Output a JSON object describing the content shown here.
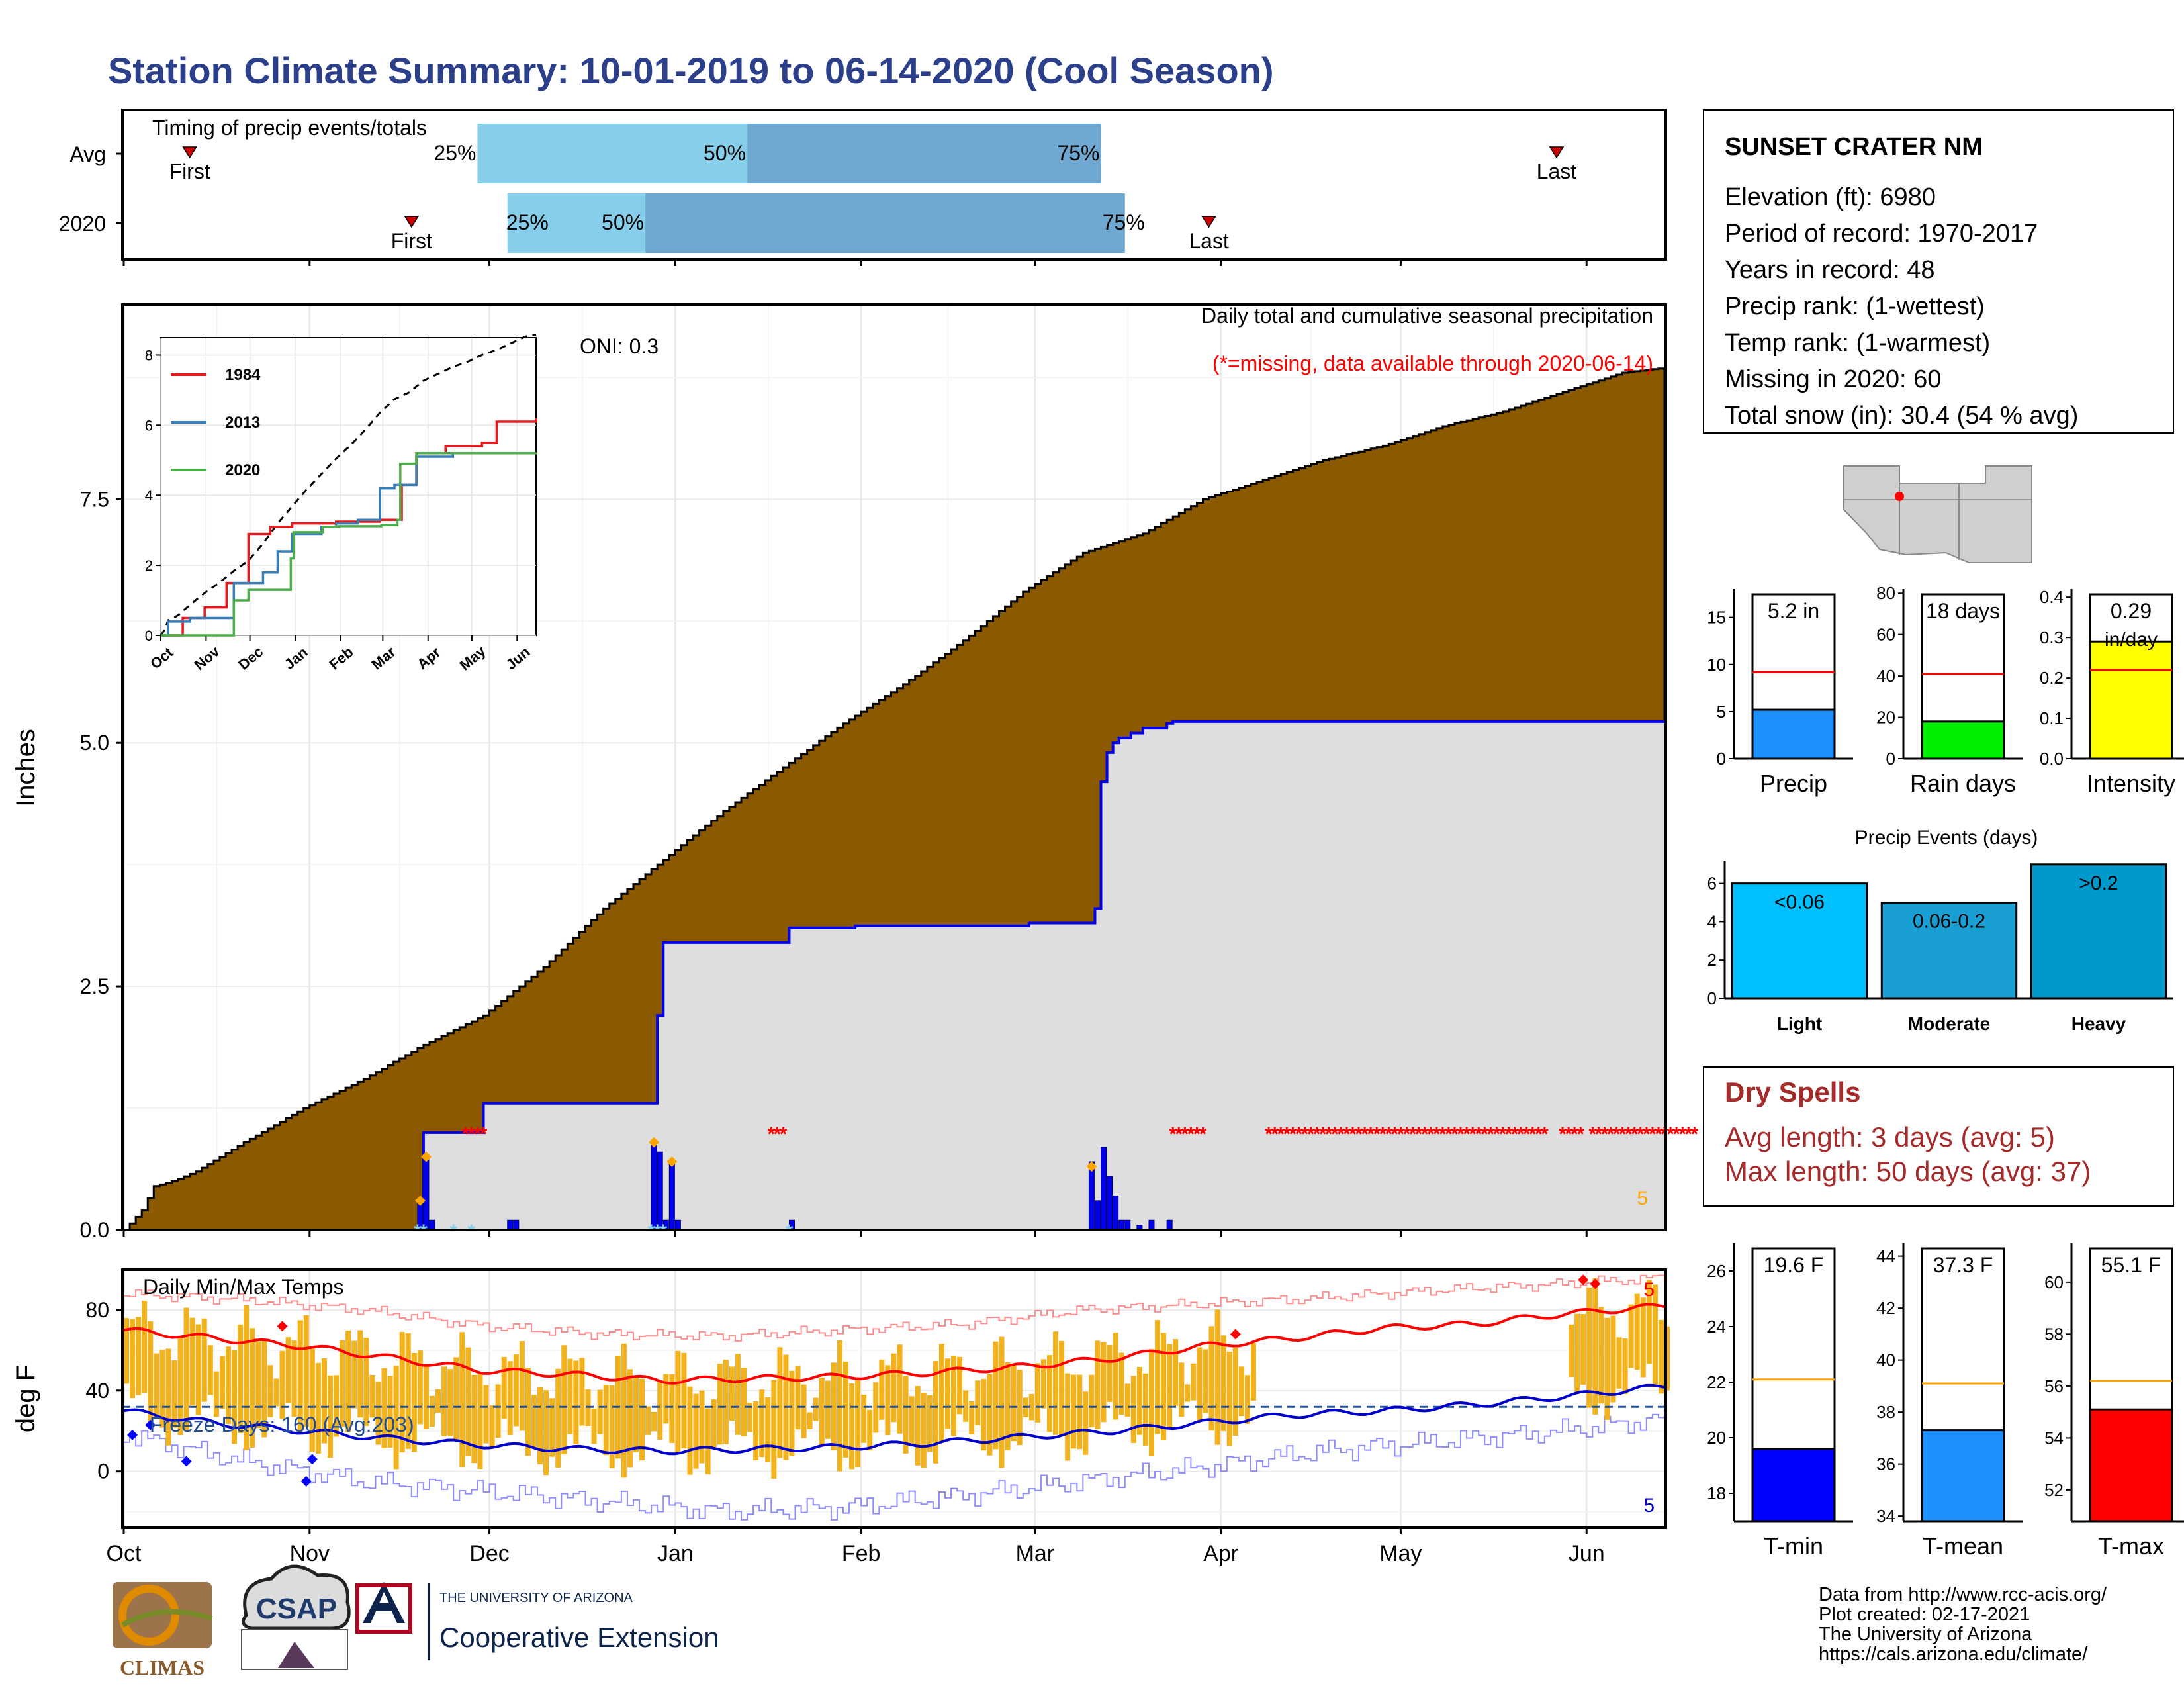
{
  "title": "Station Climate Summary: 10-01-2019 to 06-14-2020 (Cool Season)",
  "timing": {
    "label": "Timing of precip events/totals",
    "rows": [
      {
        "name": "Avg",
        "first": "10-12",
        "p25": "11-29",
        "p50": "01-13",
        "p75": "03-12",
        "last": "05-27",
        "first_label": "First",
        "last_label": "Last",
        "p25_label": "25%",
        "p50_label": "50%",
        "p75_label": "75%"
      },
      {
        "name": "2020",
        "first": "11-18",
        "p25": "12-04",
        "p50": "12-27",
        "p75": "03-16",
        "last": "03-30",
        "first_label": "First",
        "last_label": "Last",
        "p25_label": "25%",
        "p50_label": "50%",
        "p75_label": "75%"
      }
    ],
    "colors": {
      "light": "#87ceeb",
      "dark": "#6fa8d0",
      "marker": "#cc0000"
    }
  },
  "station": {
    "name": "SUNSET CRATER NM",
    "lines": [
      "Elevation (ft): 6980",
      "Period of record: 1970-2017",
      "Years in record: 48",
      "Precip rank:  (1-wettest)",
      "Temp rank:  (1-warmest)",
      "Missing in 2020: 60",
      "Total snow (in): 30.4 (54 % avg)"
    ]
  },
  "map": {
    "description_hidden": true
  },
  "chart_data": [
    {
      "type": "area",
      "id": "precip",
      "title": "Daily total and cumulative seasonal precipitation",
      "subtitle": "(*=missing, data available through 2020-06-14)",
      "oni_label": "ONI: 0.3",
      "ylabel": "Inches",
      "ylim": [
        0,
        9.5
      ],
      "yticks": [
        0.0,
        2.5,
        5.0,
        7.5
      ],
      "ytick_labels": [
        "0.0",
        "2.5",
        "5.0",
        "7.5"
      ],
      "x_months": [
        "Oct",
        "Nov",
        "Dec",
        "Jan",
        "Feb",
        "Mar",
        "Apr",
        "May",
        "Jun"
      ],
      "avg_cumulative": {
        "day": [
          0,
          3,
          5,
          8,
          12,
          20,
          30,
          40,
          50,
          60,
          70,
          80,
          90,
          100,
          110,
          120,
          130,
          140,
          150,
          160,
          170,
          180,
          190,
          200,
          210,
          220,
          230,
          240,
          250,
          257
        ],
        "value": [
          0.0,
          0.2,
          0.45,
          0.5,
          0.6,
          0.9,
          1.25,
          1.55,
          1.9,
          2.2,
          2.7,
          3.3,
          3.8,
          4.3,
          4.75,
          5.2,
          5.6,
          6.05,
          6.55,
          6.95,
          7.15,
          7.5,
          7.7,
          7.9,
          8.05,
          8.25,
          8.4,
          8.6,
          8.8,
          8.85
        ]
      },
      "observed_cumulative": {
        "day": [
          0,
          49,
          50,
          59,
          60,
          88,
          89,
          90,
          91,
          110,
          111,
          122,
          151,
          161,
          162,
          163,
          164,
          165,
          166,
          168,
          170,
          174,
          175,
          257
        ],
        "value": [
          0.0,
          0.0,
          1.0,
          1.0,
          1.3,
          1.3,
          2.2,
          2.95,
          2.95,
          2.95,
          3.1,
          3.12,
          3.15,
          3.15,
          3.3,
          4.6,
          4.9,
          5.0,
          5.05,
          5.1,
          5.15,
          5.2,
          5.22,
          5.22
        ]
      },
      "daily_bars": {
        "day": [
          49,
          50,
          51,
          64,
          65,
          88,
          89,
          90,
          91,
          92,
          111,
          161,
          162,
          163,
          164,
          165,
          166,
          167,
          169,
          171,
          174
        ],
        "value": [
          0.3,
          0.75,
          0.1,
          0.1,
          0.1,
          0.9,
          0.8,
          0.1,
          0.7,
          0.1,
          0.1,
          0.7,
          0.3,
          0.85,
          0.55,
          0.35,
          0.1,
          0.1,
          0.05,
          0.1,
          0.1
        ]
      },
      "snow_marks": [
        49,
        50,
        55,
        58,
        88,
        89,
        90,
        111
      ],
      "diamond_marks": [
        {
          "day": 49,
          "value": 0.3
        },
        {
          "day": 50,
          "value": 0.75
        },
        {
          "day": 88,
          "value": 0.9
        },
        {
          "day": 91,
          "value": 0.7
        },
        {
          "day": 161,
          "value": 0.65
        }
      ],
      "missing_ranges": [
        [
          57,
          60
        ],
        [
          108,
          110
        ],
        [
          175,
          180
        ],
        [
          191,
          237
        ],
        [
          240,
          243
        ],
        [
          245,
          262
        ]
      ],
      "corner_label": "5",
      "colors": {
        "avg_fill": "#8b5a00",
        "obs_fill": "#dedede",
        "obs_line": "#0000ee",
        "bars": "#0000ee",
        "missing": "#ff0000",
        "diamond": "#ffa500",
        "snow": "#87ceeb"
      }
    },
    {
      "type": "line",
      "id": "inset",
      "series": [
        {
          "name": "1984",
          "color": "#e41a1c",
          "x": [
            0,
            15,
            30,
            45,
            60,
            75,
            90,
            105,
            120,
            150,
            165,
            175,
            195,
            220,
            230,
            257
          ],
          "y": [
            0,
            0.5,
            0.8,
            1.5,
            2.9,
            3.1,
            3.2,
            3.2,
            3.25,
            3.3,
            4.3,
            5.2,
            5.4,
            5.5,
            6.1,
            6.2
          ]
        },
        {
          "name": "2013",
          "color": "#377eb8",
          "x": [
            0,
            5,
            20,
            40,
            50,
            70,
            80,
            90,
            110,
            120,
            135,
            150,
            160,
            175,
            200,
            257
          ],
          "y": [
            0,
            0.4,
            0.5,
            0.5,
            1.5,
            1.8,
            2.4,
            2.9,
            3.1,
            3.2,
            3.3,
            4.2,
            4.3,
            5.1,
            5.2,
            5.2
          ]
        },
        {
          "name": "2020",
          "color": "#4daf4a",
          "x": [
            0,
            49,
            50,
            60,
            89,
            91,
            111,
            122,
            151,
            162,
            164,
            175,
            257
          ],
          "y": [
            0,
            0,
            1.0,
            1.3,
            2.2,
            2.95,
            3.1,
            3.12,
            3.15,
            3.3,
            4.9,
            5.2,
            5.22
          ]
        }
      ],
      "avg_line": {
        "color": "#000000",
        "style": "dashed"
      },
      "ylim": [
        0,
        8.5
      ],
      "yticks": [
        0,
        2,
        4,
        6,
        8
      ],
      "ytick_labels": [
        "0",
        "2",
        "4",
        "6",
        "8"
      ],
      "x_months": [
        "Oct",
        "Nov",
        "Dec",
        "Jan",
        "Feb",
        "Mar",
        "Apr",
        "May",
        "Jun"
      ]
    },
    {
      "type": "bar",
      "id": "summary_precip",
      "label": "Precip",
      "value": 5.2,
      "value_label": "5.2 in",
      "avg": 9.2,
      "ylim": [
        0,
        18
      ],
      "yticks": [
        0,
        5,
        10,
        15
      ],
      "color": "#1e90ff"
    },
    {
      "type": "bar",
      "id": "summary_raindays",
      "label": "Rain days",
      "value": 18,
      "value_label": "18 days",
      "avg": 41,
      "ylim": [
        0,
        82
      ],
      "yticks": [
        0,
        20,
        40,
        60,
        80
      ],
      "color": "#00ee00"
    },
    {
      "type": "bar",
      "id": "summary_intensity",
      "label": "Intensity",
      "value": 0.29,
      "value_label": "0.29",
      "value_unit": "in/day",
      "avg": 0.22,
      "ylim": [
        0,
        0.42
      ],
      "yticks": [
        0.0,
        0.1,
        0.2,
        0.3,
        0.4
      ],
      "ytick_labels": [
        "0.0",
        "0.1",
        "0.2",
        "0.3",
        "0.4"
      ],
      "color": "#ffff00"
    },
    {
      "type": "bar",
      "id": "events",
      "title": "Precip Events (days)",
      "categories": [
        "Light",
        "Moderate",
        "Heavy"
      ],
      "bar_labels": [
        "<0.06",
        "0.06-0.2",
        ">0.2"
      ],
      "values": [
        6,
        5,
        7
      ],
      "ylim": [
        0,
        7.2
      ],
      "yticks": [
        0,
        2,
        4,
        6
      ],
      "colors": [
        "#00bfff",
        "#1a9fd4",
        "#0099cc"
      ]
    },
    {
      "type": "line",
      "id": "temps",
      "title": "Daily Min/Max Temps",
      "ylabel": "deg F",
      "ylim": [
        -28,
        100
      ],
      "yticks": [
        0,
        40,
        80
      ],
      "freeze_label": "Freeze Days: 160 (Avg:203)",
      "freeze_line": 32,
      "x_months": [
        "Oct",
        "Nov",
        "Dec",
        "Jan",
        "Feb",
        "Mar",
        "Apr",
        "May",
        "Jun"
      ],
      "avg_max": {
        "day": [
          0,
          15,
          30,
          45,
          60,
          75,
          90,
          105,
          120,
          135,
          150,
          165,
          180,
          195,
          210,
          225,
          240,
          257
        ],
        "value": [
          70,
          66,
          62,
          56,
          50,
          48,
          45,
          46,
          47,
          49,
          52,
          56,
          62,
          66,
          71,
          73,
          78,
          82
        ]
      },
      "avg_min": {
        "day": [
          0,
          15,
          30,
          45,
          60,
          75,
          90,
          105,
          120,
          135,
          150,
          165,
          180,
          195,
          210,
          225,
          240,
          257
        ],
        "value": [
          30,
          24,
          20,
          16,
          13,
          11,
          10,
          11,
          12,
          14,
          17,
          20,
          24,
          28,
          30,
          33,
          37,
          42
        ]
      },
      "record_max": {
        "day": [
          0,
          20,
          40,
          60,
          80,
          100,
          120,
          140,
          160,
          180,
          200,
          220,
          240,
          257
        ],
        "value": [
          88,
          85,
          80,
          72,
          68,
          67,
          70,
          73,
          80,
          83,
          86,
          90,
          93,
          96
        ]
      },
      "record_min": {
        "day": [
          0,
          20,
          40,
          60,
          80,
          100,
          120,
          140,
          160,
          180,
          200,
          220,
          240,
          257
        ],
        "value": [
          18,
          5,
          -5,
          -10,
          -15,
          -20,
          -18,
          -12,
          -5,
          2,
          10,
          15,
          20,
          26
        ]
      },
      "missing_gap_days": [
        189,
        240
      ],
      "high_markers": [
        {
          "day": 26,
          "value": 72
        },
        {
          "day": 185,
          "value": 68
        },
        {
          "day": 243,
          "value": 95
        },
        {
          "day": 245,
          "value": 93
        }
      ],
      "low_markers": [
        {
          "day": 1,
          "value": 18
        },
        {
          "day": 4,
          "value": 23
        },
        {
          "day": 10,
          "value": 5
        },
        {
          "day": 30,
          "value": -5
        },
        {
          "day": 31,
          "value": 6
        }
      ],
      "corner_label_top": "5",
      "corner_label_bottom": "5",
      "colors": {
        "bars": "#f2b21e",
        "max": "#ff0000",
        "min": "#0000cc",
        "record_max": "#ff8c8c",
        "record_min": "#8c8cff",
        "freeze": "#1f4e9a"
      }
    },
    {
      "type": "bar",
      "id": "tmin",
      "label": "T-min",
      "value": 19.6,
      "value_label": "19.6 F",
      "avg": 22.1,
      "ylim": [
        17,
        27
      ],
      "yticks": [
        18,
        20,
        22,
        24,
        26
      ],
      "color": "#0000ff"
    },
    {
      "type": "bar",
      "id": "tmean",
      "label": "T-mean",
      "value": 37.3,
      "value_label": "37.3 F",
      "avg": 39.1,
      "ylim": [
        33.8,
        44.5
      ],
      "yticks": [
        34,
        36,
        38,
        40,
        42,
        44
      ],
      "color": "#1e90ff"
    },
    {
      "type": "bar",
      "id": "tmax",
      "label": "T-max",
      "value": 55.1,
      "value_label": "55.1 F",
      "avg": 56.2,
      "ylim": [
        50.8,
        61.5
      ],
      "yticks": [
        52,
        54,
        56,
        58,
        60
      ],
      "color": "#ff0000"
    }
  ],
  "dry_spells": {
    "title": "Dry Spells",
    "lines": [
      "Avg length: 3 days (avg: 5)",
      "Max length: 50 days (avg: 37)"
    ],
    "color": "#a52a2a"
  },
  "footer": {
    "credits": [
      "Data from http://www.rcc-acis.org/",
      "Plot created: 02-17-2021",
      "The University of Arizona",
      "https://cals.arizona.edu/climate/"
    ],
    "logos": {
      "climas": "CLIMAS",
      "csap": "CSAP",
      "ua_top": "THE UNIVERSITY OF ARIZONA",
      "ua_bottom": "Cooperative Extension"
    }
  }
}
